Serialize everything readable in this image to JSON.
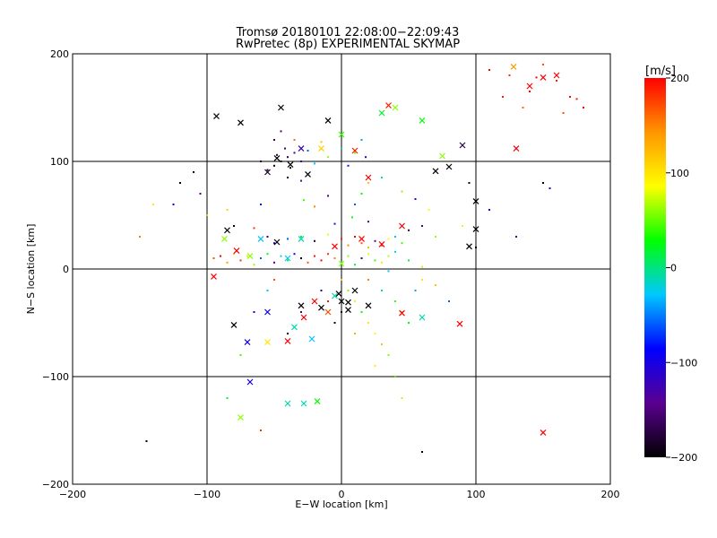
{
  "chart_data": {
    "type": "scatter",
    "title": "Tromsø 20180101 22:08:00−22:09:43",
    "subtitle": "RwPretec (8p) EXPERIMENTAL SKYMAP",
    "xlabel": "E−W location [km]",
    "ylabel": "N−S location [km]",
    "xlim": [
      -200,
      200
    ],
    "ylim": [
      -200,
      200
    ],
    "xticks": [
      -200,
      -100,
      0,
      100,
      200
    ],
    "yticks": [
      -200,
      -100,
      0,
      100,
      200
    ],
    "xtick_labels": [
      "−200",
      "−100",
      "0",
      "100",
      "200"
    ],
    "ytick_labels": [
      "200",
      "100",
      "0",
      "−100",
      "−200"
    ],
    "grid": true,
    "colorbar": {
      "label": "[m/s]",
      "range": [
        -200,
        200
      ],
      "tick_values": [
        200,
        100,
        0,
        -100,
        -200
      ],
      "tick_labels": [
        "200",
        "100",
        "0",
        "−100",
        "−200"
      ],
      "colormap": [
        "#000000",
        "#5a0090",
        "#0000ff",
        "#00c8ff",
        "#00ff00",
        "#ffff00",
        "#ff9600",
        "#ff0000"
      ]
    },
    "series": [
      {
        "marker": "dot",
        "points": [
          [
            -45,
            100,
            -190
          ],
          [
            -40,
            104,
            -170
          ],
          [
            -50,
            96,
            -200
          ],
          [
            -35,
            108,
            -150
          ],
          [
            -55,
            92,
            -180
          ],
          [
            -42,
            112,
            -160
          ],
          [
            -38,
            94,
            -195
          ],
          [
            -48,
            106,
            -175
          ],
          [
            -30,
            100,
            -120
          ],
          [
            -60,
            100,
            -185
          ],
          [
            -25,
            110,
            -60
          ],
          [
            -20,
            98,
            -30
          ],
          [
            -10,
            104,
            60
          ],
          [
            0,
            112,
            -10
          ],
          [
            10,
            108,
            50
          ],
          [
            18,
            104,
            -120
          ],
          [
            -50,
            120,
            -170
          ],
          [
            -40,
            85,
            -190
          ],
          [
            -30,
            82,
            -140
          ],
          [
            -35,
            120,
            160
          ],
          [
            -45,
            128,
            -150
          ],
          [
            -15,
            118,
            120
          ],
          [
            5,
            96,
            -80
          ],
          [
            15,
            120,
            -40
          ],
          [
            -80,
            40,
            -190
          ],
          [
            -65,
            38,
            180
          ],
          [
            -55,
            30,
            -160
          ],
          [
            -50,
            24,
            -100
          ],
          [
            -40,
            28,
            -60
          ],
          [
            -30,
            30,
            20
          ],
          [
            -20,
            26,
            -180
          ],
          [
            -10,
            32,
            80
          ],
          [
            0,
            28,
            190
          ],
          [
            5,
            22,
            150
          ],
          [
            10,
            30,
            200
          ],
          [
            15,
            24,
            170
          ],
          [
            20,
            20,
            120
          ],
          [
            25,
            26,
            -140
          ],
          [
            30,
            22,
            180
          ],
          [
            35,
            28,
            90
          ],
          [
            40,
            30,
            -30
          ],
          [
            45,
            24,
            40
          ],
          [
            50,
            36,
            -170
          ],
          [
            60,
            40,
            -120
          ],
          [
            70,
            30,
            60
          ],
          [
            -5,
            42,
            -80
          ],
          [
            8,
            48,
            30
          ],
          [
            20,
            44,
            -150
          ],
          [
            -95,
            10,
            170
          ],
          [
            -90,
            12,
            200
          ],
          [
            -85,
            6,
            140
          ],
          [
            -80,
            14,
            120
          ],
          [
            -75,
            8,
            180
          ],
          [
            -70,
            12,
            100
          ],
          [
            -65,
            4,
            60
          ],
          [
            -60,
            10,
            -60
          ],
          [
            -55,
            14,
            20
          ],
          [
            -50,
            6,
            -140
          ],
          [
            -45,
            12,
            -20
          ],
          [
            -40,
            8,
            30
          ],
          [
            -35,
            14,
            -100
          ],
          [
            -30,
            10,
            -200
          ],
          [
            -25,
            6,
            170
          ],
          [
            -20,
            12,
            190
          ],
          [
            -15,
            8,
            200
          ],
          [
            -10,
            14,
            180
          ],
          [
            -5,
            10,
            150
          ],
          [
            0,
            6,
            -10
          ],
          [
            5,
            12,
            60
          ],
          [
            10,
            4,
            20
          ],
          [
            15,
            10,
            -160
          ],
          [
            20,
            14,
            80
          ],
          [
            25,
            8,
            40
          ],
          [
            30,
            6,
            100
          ],
          [
            35,
            12,
            70
          ],
          [
            40,
            16,
            -20
          ],
          [
            0,
            -10,
            110
          ],
          [
            5,
            -20,
            60
          ],
          [
            10,
            -30,
            80
          ],
          [
            15,
            -40,
            30
          ],
          [
            20,
            -50,
            100
          ],
          [
            25,
            -60,
            90
          ],
          [
            30,
            -70,
            120
          ],
          [
            35,
            -80,
            60
          ],
          [
            40,
            -30,
            40
          ],
          [
            45,
            -40,
            130
          ],
          [
            50,
            -50,
            20
          ],
          [
            55,
            -20,
            -40
          ],
          [
            60,
            -10,
            100
          ],
          [
            30,
            -20,
            -10
          ],
          [
            20,
            -10,
            150
          ],
          [
            10,
            -60,
            130
          ],
          [
            0,
            -40,
            -200
          ],
          [
            -10,
            -30,
            190
          ],
          [
            -5,
            -50,
            -180
          ],
          [
            25,
            -90,
            100
          ],
          [
            40,
            -100,
            40
          ],
          [
            45,
            -120,
            70
          ],
          [
            -15,
            -20,
            -100
          ],
          [
            -30,
            -40,
            -150
          ],
          [
            -40,
            -60,
            -200
          ],
          [
            -55,
            -20,
            -30
          ],
          [
            -65,
            -40,
            -90
          ],
          [
            -75,
            -80,
            40
          ],
          [
            -60,
            -150,
            180
          ],
          [
            -85,
            -120,
            20
          ],
          [
            -50,
            -10,
            170
          ],
          [
            35,
            -2,
            -30
          ],
          [
            50,
            8,
            10
          ],
          [
            60,
            2,
            70
          ],
          [
            70,
            -15,
            120
          ],
          [
            80,
            -30,
            -60
          ],
          [
            -120,
            80,
            -200
          ],
          [
            -140,
            60,
            100
          ],
          [
            -150,
            30,
            150
          ],
          [
            -110,
            90,
            -200
          ],
          [
            -100,
            50,
            60
          ],
          [
            -85,
            55,
            110
          ],
          [
            100,
            20,
            -200
          ],
          [
            110,
            55,
            -100
          ],
          [
            95,
            80,
            -190
          ],
          [
            90,
            40,
            80
          ],
          [
            130,
            30,
            -150
          ],
          [
            150,
            80,
            -200
          ],
          [
            155,
            75,
            -120
          ],
          [
            -145,
            -160,
            -200
          ],
          [
            60,
            -170,
            -200
          ],
          [
            125,
            180,
            180
          ],
          [
            140,
            165,
            200
          ],
          [
            150,
            190,
            170
          ],
          [
            160,
            175,
            190
          ],
          [
            170,
            160,
            200
          ],
          [
            180,
            150,
            200
          ],
          [
            135,
            150,
            160
          ],
          [
            110,
            185,
            200
          ],
          [
            165,
            145,
            170
          ],
          [
            175,
            158,
            190
          ],
          [
            145,
            178,
            200
          ],
          [
            120,
            160,
            190
          ],
          [
            -125,
            60,
            -100
          ],
          [
            -105,
            70,
            -150
          ],
          [
            10,
            60,
            -60
          ],
          [
            15,
            70,
            30
          ],
          [
            20,
            80,
            120
          ],
          [
            30,
            85,
            -10
          ],
          [
            45,
            72,
            60
          ],
          [
            55,
            65,
            -120
          ],
          [
            65,
            55,
            90
          ],
          [
            -10,
            68,
            -150
          ],
          [
            -20,
            58,
            150
          ],
          [
            -28,
            64,
            40
          ],
          [
            -60,
            60,
            -80
          ]
        ]
      },
      {
        "marker": "cross",
        "points": [
          [
            -45,
            150,
            -200
          ],
          [
            -93,
            142,
            -200
          ],
          [
            -75,
            136,
            -200
          ],
          [
            -48,
            103,
            -200
          ],
          [
            -38,
            97,
            -200
          ],
          [
            -55,
            90,
            -180
          ],
          [
            -25,
            88,
            -200
          ],
          [
            -10,
            138,
            -200
          ],
          [
            10,
            110,
            190
          ],
          [
            -30,
            112,
            -120
          ],
          [
            -15,
            112,
            110
          ],
          [
            0,
            125,
            40
          ],
          [
            30,
            145,
            20
          ],
          [
            40,
            150,
            60
          ],
          [
            35,
            152,
            190
          ],
          [
            60,
            138,
            30
          ],
          [
            90,
            115,
            -170
          ],
          [
            70,
            91,
            -200
          ],
          [
            80,
            95,
            -200
          ],
          [
            75,
            105,
            60
          ],
          [
            100,
            63,
            -200
          ],
          [
            100,
            37,
            -200
          ],
          [
            95,
            21,
            -200
          ],
          [
            20,
            85,
            200
          ],
          [
            -85,
            36,
            -200
          ],
          [
            -87,
            28,
            60
          ],
          [
            -95,
            -7,
            200
          ],
          [
            -80,
            -52,
            -200
          ],
          [
            -70,
            -68,
            -90
          ],
          [
            -55,
            -68,
            100
          ],
          [
            -40,
            -67,
            200
          ],
          [
            -55,
            -40,
            -90
          ],
          [
            -35,
            -54,
            -10
          ],
          [
            -28,
            -45,
            200
          ],
          [
            -30,
            -34,
            -200
          ],
          [
            -15,
            -36,
            -200
          ],
          [
            -20,
            -30,
            200
          ],
          [
            -10,
            -40,
            170
          ],
          [
            0,
            -30,
            -200
          ],
          [
            5,
            -38,
            -200
          ],
          [
            -5,
            -25,
            -10
          ],
          [
            10,
            -20,
            -200
          ],
          [
            20,
            -34,
            -200
          ],
          [
            45,
            -41,
            200
          ],
          [
            60,
            -45,
            -10
          ],
          [
            88,
            -51,
            200
          ],
          [
            -68,
            -105,
            -100
          ],
          [
            -75,
            -138,
            60
          ],
          [
            -40,
            -125,
            -10
          ],
          [
            -28,
            -125,
            -10
          ],
          [
            -18,
            -123,
            30
          ],
          [
            150,
            -152,
            200
          ],
          [
            130,
            112,
            200
          ],
          [
            140,
            170,
            200
          ],
          [
            150,
            178,
            200
          ],
          [
            160,
            180,
            200
          ],
          [
            128,
            188,
            140
          ],
          [
            -22,
            -65,
            -30
          ],
          [
            30,
            23,
            200
          ],
          [
            15,
            28,
            200
          ],
          [
            -5,
            21,
            200
          ],
          [
            -60,
            28,
            -30
          ],
          [
            -68,
            12,
            60
          ],
          [
            -78,
            17,
            200
          ],
          [
            -30,
            28,
            -10
          ],
          [
            -40,
            10,
            -30
          ],
          [
            0,
            5,
            60
          ],
          [
            45,
            40,
            200
          ],
          [
            -48,
            25,
            -200
          ],
          [
            -2,
            -23,
            -200
          ],
          [
            5,
            -31,
            -200
          ]
        ]
      }
    ]
  }
}
